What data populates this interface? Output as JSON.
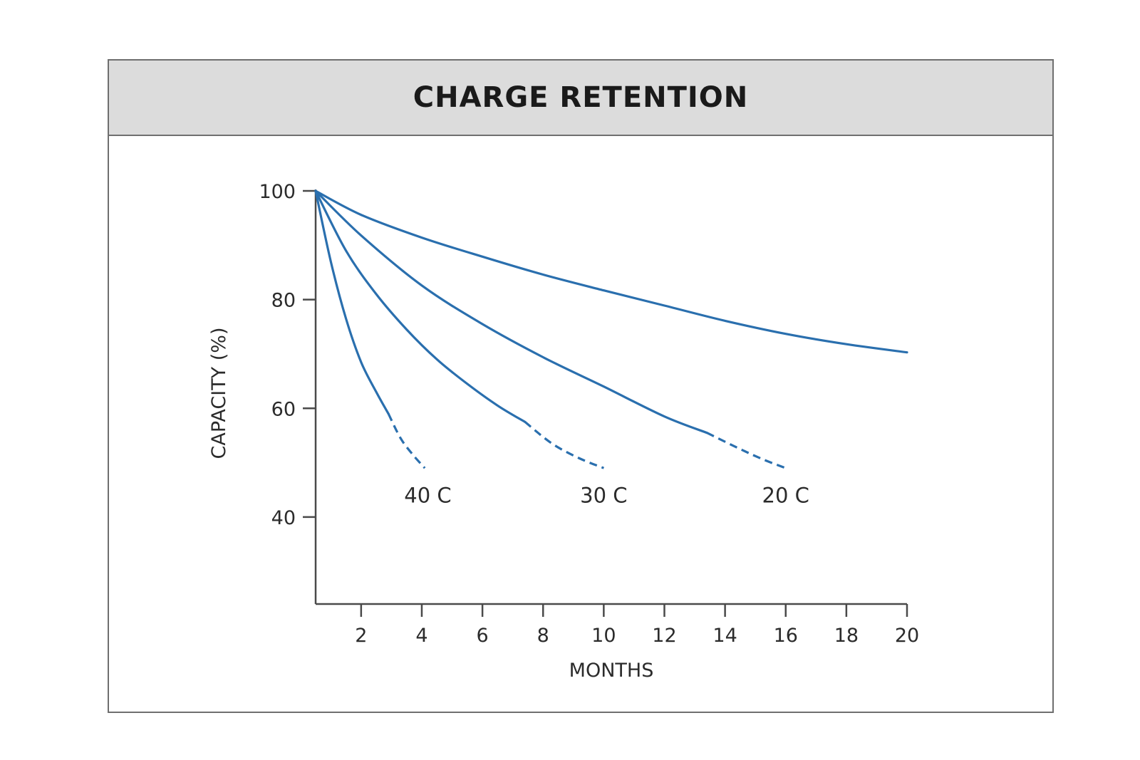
{
  "chart_data": {
    "type": "line",
    "title": "CHARGE RETENTION",
    "xlabel": "MONTHS",
    "ylabel": "CAPACITY (%)",
    "xlim": [
      0.5,
      20
    ],
    "ylim": [
      24,
      100
    ],
    "x_ticks": [
      "2",
      "4",
      "6",
      "8",
      "10",
      "12",
      "14",
      "16",
      "18",
      "20"
    ],
    "y_ticks": [
      "40",
      "60",
      "80",
      "100"
    ],
    "grid": false,
    "legend": "none",
    "line_color": "#2a6fae",
    "series": [
      {
        "name": "40 C",
        "solid": [
          [
            0.5,
            100
          ],
          [
            1.0,
            87
          ],
          [
            1.5,
            76.5
          ],
          [
            2.0,
            68.5
          ],
          [
            2.5,
            63
          ],
          [
            2.9,
            59
          ]
        ],
        "dashed": [
          [
            2.9,
            59
          ],
          [
            3.3,
            54.5
          ],
          [
            3.7,
            51.5
          ],
          [
            4.1,
            49
          ]
        ]
      },
      {
        "name": "30 C",
        "solid": [
          [
            0.5,
            100
          ],
          [
            1.5,
            89
          ],
          [
            2.5,
            81
          ],
          [
            3.5,
            74.5
          ],
          [
            4.5,
            69
          ],
          [
            5.5,
            64.5
          ],
          [
            6.5,
            60.5
          ],
          [
            7.4,
            57.5
          ]
        ],
        "dashed": [
          [
            7.4,
            57.5
          ],
          [
            8.3,
            53.5
          ],
          [
            9.2,
            50.8
          ],
          [
            10.0,
            49
          ]
        ]
      },
      {
        "name": "20 C",
        "solid": [
          [
            0.5,
            100
          ],
          [
            2,
            91.8
          ],
          [
            4,
            82.6
          ],
          [
            6,
            75.5
          ],
          [
            8,
            69.4
          ],
          [
            10,
            64
          ],
          [
            12,
            58.5
          ],
          [
            13.4,
            55.5
          ]
        ],
        "dashed": [
          [
            13.4,
            55.5
          ],
          [
            14.5,
            52.5
          ],
          [
            15.3,
            50.5
          ],
          [
            16.0,
            49
          ]
        ]
      },
      {
        "name": "",
        "solid": [
          [
            0.5,
            100
          ],
          [
            2,
            95.6
          ],
          [
            4,
            91.4
          ],
          [
            6,
            87.9
          ],
          [
            8,
            84.6
          ],
          [
            10,
            81.7
          ],
          [
            12,
            78.9
          ],
          [
            14,
            76.1
          ],
          [
            16,
            73.7
          ],
          [
            18,
            71.8
          ],
          [
            20,
            70.3
          ]
        ],
        "dashed": []
      }
    ],
    "series_label_positions": [
      {
        "label": "40 C",
        "x": 4.2,
        "y": 44
      },
      {
        "label": "30 C",
        "x": 10.0,
        "y": 44
      },
      {
        "label": "20 C",
        "x": 16.0,
        "y": 44
      }
    ]
  }
}
